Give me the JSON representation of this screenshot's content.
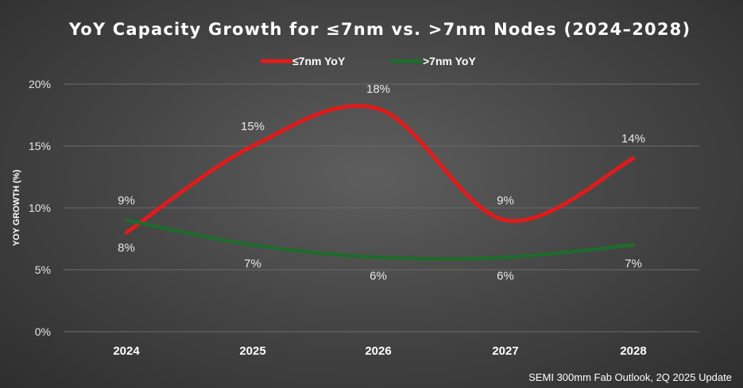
{
  "chart_data": {
    "type": "line",
    "title": "YoY Capacity Growth for ≤7nm vs. >7nm Nodes (2024–2028)",
    "xlabel": "",
    "ylabel": "YOY GROWTH (%)",
    "categories": [
      "2024",
      "2025",
      "2026",
      "2027",
      "2028"
    ],
    "series": [
      {
        "name": "≤7nm YoY",
        "color": "#e01b1b",
        "values": [
          8,
          15,
          18,
          9,
          14
        ],
        "labels": [
          "8%",
          "15%",
          "18%",
          "9%",
          "14%"
        ]
      },
      {
        "name": ">7nm YoY",
        "color": "#1f6b2c",
        "values": [
          9,
          7,
          6,
          6,
          7
        ],
        "labels": [
          "9%",
          "7%",
          "6%",
          "6%",
          "7%"
        ]
      }
    ],
    "ylim": [
      0,
      20
    ],
    "yticks": [
      "0%",
      "5%",
      "10%",
      "15%",
      "20%"
    ],
    "grid": true,
    "legend": "top-center",
    "smooth": true,
    "source": "SEMI 300mm Fab Outlook, 2Q 2025 Update"
  }
}
